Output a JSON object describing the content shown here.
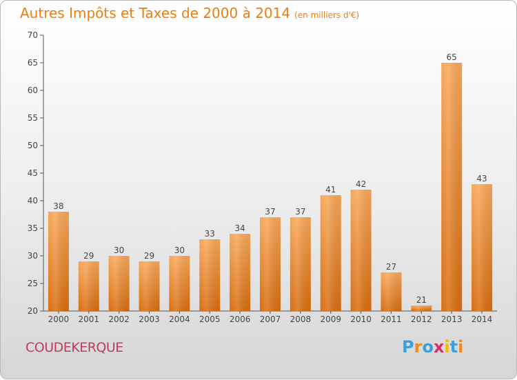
{
  "chart_data": {
    "type": "bar",
    "title": "Autres Impôts et Taxes de 2000 à 2014",
    "unit_note": "(en milliers d'€)",
    "categories": [
      "2000",
      "2001",
      "2002",
      "2003",
      "2004",
      "2005",
      "2006",
      "2007",
      "2008",
      "2009",
      "2010",
      "2011",
      "2012",
      "2013",
      "2014"
    ],
    "values": [
      38,
      29,
      30,
      29,
      30,
      33,
      34,
      37,
      37,
      41,
      42,
      27,
      21,
      65,
      43
    ],
    "ylim": [
      20,
      70
    ],
    "yticks": [
      20,
      25,
      30,
      35,
      40,
      45,
      50,
      55,
      60,
      65,
      70
    ],
    "grid": false,
    "bar_color": "#ee8a2a"
  },
  "commune": "COUDEKERQUE",
  "logo": {
    "letters": [
      "P",
      "r",
      "o",
      "x",
      "i",
      "t",
      "i"
    ],
    "colors": [
      "#3aa0dc",
      "#f08a1c",
      "#3aa0dc",
      "#d62e6a",
      "#f5b800",
      "#3aa0dc",
      "#f08a1c"
    ]
  }
}
